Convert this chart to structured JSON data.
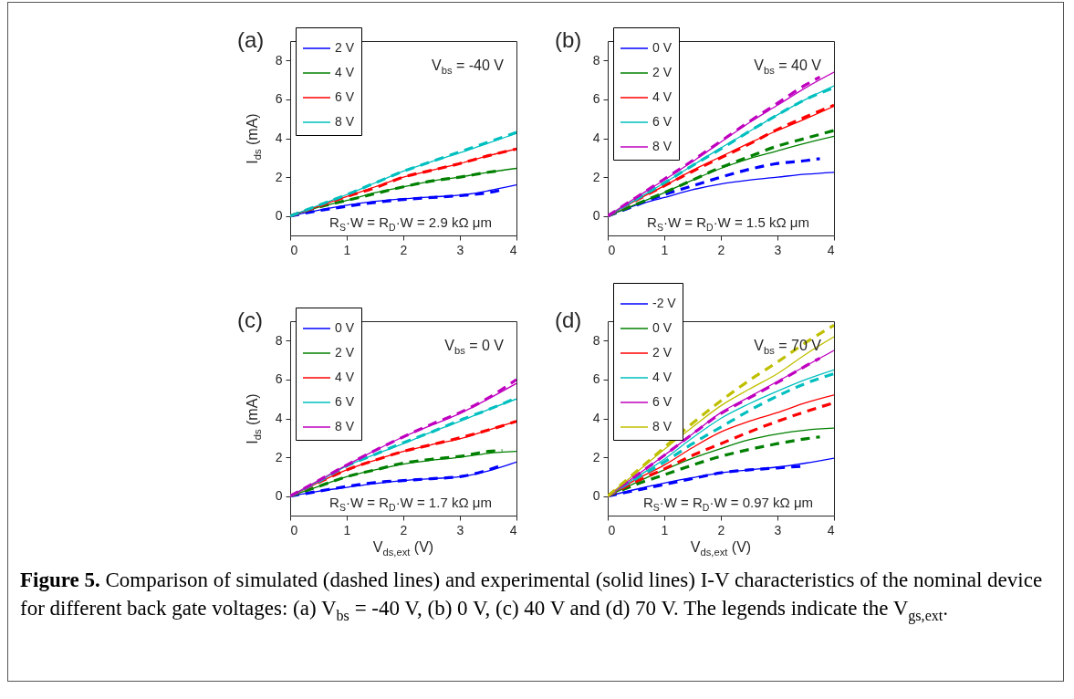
{
  "chart_data": [
    {
      "type": "line",
      "title": "(a)",
      "ylabel": "I$_{ds}$ (mA)",
      "xlim": [
        0,
        4
      ],
      "ylim": [
        -1,
        9
      ],
      "xticks": [
        0,
        1,
        2,
        3,
        4
      ],
      "yticks": [
        0,
        2,
        4,
        6,
        8
      ],
      "legend": "top left",
      "x": [
        0,
        0.5,
        1,
        1.5,
        2,
        2.5,
        3,
        3.5,
        4
      ],
      "annotations": [
        "V$_{bs}$ = -40 V",
        "R$_{S}$·W = R$_{D}$·W = 2.9 kΩ μm"
      ],
      "series": [
        {
          "name": "2 V",
          "color": "#0000ff",
          "values": [
            0,
            0.3,
            0.56,
            0.75,
            0.88,
            0.98,
            1.07,
            1.3,
            1.6
          ]
        },
        {
          "name": "4 V",
          "color": "#008000",
          "values": [
            0,
            0.45,
            0.8,
            1.2,
            1.5,
            1.8,
            2.0,
            2.25,
            2.45
          ]
        },
        {
          "name": "6 V",
          "color": "#ff0000",
          "values": [
            0,
            0.5,
            1.0,
            1.5,
            2.0,
            2.35,
            2.7,
            3.1,
            3.45
          ]
        },
        {
          "name": "8 V",
          "color": "#00bfbf",
          "values": [
            0,
            0.55,
            1.1,
            1.7,
            2.3,
            2.8,
            3.25,
            3.75,
            4.25
          ]
        },
        {
          "color": "#0000ff",
          "line_style": "dashed",
          "x": [
            0,
            0.5,
            1,
            1.5,
            2,
            2.5,
            3,
            3.5,
            3.75
          ],
          "values": [
            0,
            0.27,
            0.5,
            0.7,
            0.85,
            0.95,
            1.05,
            1.2,
            1.35
          ]
        },
        {
          "color": "#008000",
          "line_style": "dashed",
          "x": [
            0,
            0.5,
            1,
            1.5,
            2,
            2.5,
            3,
            3.5,
            3.75
          ],
          "values": [
            0,
            0.45,
            0.8,
            1.15,
            1.5,
            1.8,
            2.0,
            2.25,
            2.35
          ]
        },
        {
          "color": "#ff0000",
          "line_style": "dashed",
          "values": [
            0,
            0.5,
            1.0,
            1.45,
            2.0,
            2.35,
            2.7,
            3.1,
            3.45
          ]
        },
        {
          "color": "#00bfbf",
          "line_style": "dashed",
          "values": [
            0,
            0.55,
            1.1,
            1.7,
            2.3,
            2.8,
            3.3,
            3.8,
            4.3
          ]
        }
      ]
    },
    {
      "type": "line",
      "title": "(b)",
      "xlim": [
        0,
        4
      ],
      "ylim": [
        -1,
        9
      ],
      "xticks": [
        0,
        1,
        2,
        3,
        4
      ],
      "yticks": [
        0,
        2,
        4,
        6,
        8
      ],
      "legend": "top left",
      "x": [
        0,
        0.5,
        1,
        1.5,
        2,
        2.5,
        3,
        3.5,
        4
      ],
      "annotations": [
        "V$_{bs}$ = 40 V",
        "R$_{S}$·W = R$_{D}$·W = 1.5 kΩ μm"
      ],
      "series": [
        {
          "name": "0 V",
          "color": "#0000ff",
          "values": [
            0,
            0.55,
            0.95,
            1.35,
            1.65,
            1.85,
            2.0,
            2.15,
            2.25
          ]
        },
        {
          "name": "2 V",
          "color": "#008000",
          "values": [
            0,
            0.6,
            1.2,
            1.85,
            2.45,
            2.95,
            3.35,
            3.75,
            4.1
          ]
        },
        {
          "name": "4 V",
          "color": "#ff0000",
          "values": [
            0,
            0.8,
            1.55,
            2.35,
            3.05,
            3.75,
            4.4,
            5.0,
            5.65
          ]
        },
        {
          "name": "6 V",
          "color": "#00bfbf",
          "values": [
            0,
            0.85,
            1.7,
            2.6,
            3.5,
            4.35,
            5.2,
            6.0,
            6.7
          ]
        },
        {
          "name": "8 V",
          "color": "#bf00bf",
          "values": [
            0,
            0.95,
            1.85,
            2.8,
            3.8,
            4.8,
            5.7,
            6.6,
            7.4
          ]
        },
        {
          "color": "#0000ff",
          "line_style": "dashed",
          "x": [
            0,
            0.5,
            1,
            1.5,
            2,
            2.5,
            3,
            3.5,
            3.75
          ],
          "values": [
            0,
            0.55,
            1.1,
            1.55,
            2.0,
            2.4,
            2.7,
            2.85,
            2.95
          ]
        },
        {
          "color": "#008000",
          "line_style": "dashed",
          "values": [
            0,
            0.6,
            1.2,
            1.85,
            2.5,
            3.05,
            3.6,
            4.0,
            4.4
          ]
        },
        {
          "color": "#ff0000",
          "line_style": "dashed",
          "values": [
            0,
            0.8,
            1.55,
            2.3,
            3.0,
            3.7,
            4.45,
            5.1,
            5.7
          ]
        },
        {
          "color": "#00bfbf",
          "line_style": "dashed",
          "values": [
            0,
            0.85,
            1.7,
            2.6,
            3.45,
            4.35,
            5.2,
            6.0,
            6.6
          ]
        },
        {
          "color": "#bf00bf",
          "line_style": "dashed",
          "x": [
            0,
            0.5,
            1,
            1.5,
            2,
            2.5,
            3,
            3.5,
            3.75
          ],
          "values": [
            0,
            0.95,
            1.9,
            2.85,
            3.85,
            4.85,
            5.8,
            6.75,
            7.15
          ]
        }
      ]
    },
    {
      "type": "line",
      "title": "(c)",
      "ylabel": "I$_{ds}$ (mA)",
      "xlabel": "V$_{ds,ext}$ (V)",
      "xlim": [
        0,
        4
      ],
      "ylim": [
        -1,
        9
      ],
      "xticks": [
        0,
        1,
        2,
        3,
        4
      ],
      "yticks": [
        0,
        2,
        4,
        6,
        8
      ],
      "legend": "top left",
      "x": [
        0,
        0.5,
        1,
        1.5,
        2,
        2.5,
        3,
        3.5,
        4
      ],
      "annotations": [
        "V$_{bs}$ = 0 V",
        "R$_{S}$·W = R$_{D}$·W = 1.7 kΩ μm"
      ],
      "series": [
        {
          "name": "0 V",
          "color": "#0000ff",
          "values": [
            0,
            0.25,
            0.45,
            0.65,
            0.8,
            0.9,
            1.0,
            1.3,
            1.75
          ]
        },
        {
          "name": "2 V",
          "color": "#008000",
          "values": [
            0,
            0.5,
            1.0,
            1.35,
            1.65,
            1.85,
            2.0,
            2.2,
            2.3
          ]
        },
        {
          "name": "4 V",
          "color": "#ff0000",
          "values": [
            0,
            0.7,
            1.35,
            1.85,
            2.3,
            2.65,
            2.95,
            3.4,
            3.85
          ]
        },
        {
          "name": "6 V",
          "color": "#00bfbf",
          "values": [
            0,
            0.75,
            1.55,
            2.15,
            2.7,
            3.3,
            3.85,
            4.45,
            5.0
          ]
        },
        {
          "name": "8 V",
          "color": "#bf00bf",
          "values": [
            0,
            0.8,
            1.6,
            2.35,
            3.05,
            3.65,
            4.25,
            5.0,
            5.8
          ]
        },
        {
          "color": "#0000ff",
          "line_style": "dashed",
          "x": [
            0,
            0.5,
            1,
            1.5,
            2,
            2.5,
            3,
            3.5,
            3.75
          ],
          "values": [
            0,
            0.25,
            0.5,
            0.7,
            0.8,
            0.9,
            1.0,
            1.35,
            1.6
          ]
        },
        {
          "color": "#008000",
          "line_style": "dashed",
          "x": [
            0,
            0.5,
            1,
            1.5,
            2,
            2.5,
            3,
            3.5,
            3.75
          ],
          "values": [
            0,
            0.5,
            1.0,
            1.35,
            1.7,
            1.9,
            2.05,
            2.3,
            2.35
          ]
        },
        {
          "color": "#ff0000",
          "line_style": "dashed",
          "values": [
            0,
            0.7,
            1.35,
            1.85,
            2.3,
            2.65,
            3.0,
            3.4,
            3.85
          ]
        },
        {
          "color": "#00bfbf",
          "line_style": "dashed",
          "values": [
            0,
            0.75,
            1.55,
            2.15,
            2.75,
            3.3,
            3.9,
            4.45,
            5.05
          ]
        },
        {
          "color": "#bf00bf",
          "line_style": "dashed",
          "values": [
            0,
            0.8,
            1.6,
            2.35,
            3.05,
            3.7,
            4.3,
            5.05,
            6.0
          ]
        }
      ]
    },
    {
      "type": "line",
      "title": "(d)",
      "xlabel": "V$_{ds,ext}$ (V)",
      "xlim": [
        0,
        4
      ],
      "ylim": [
        -1,
        9
      ],
      "xticks": [
        0,
        1,
        2,
        3,
        4
      ],
      "yticks": [
        0,
        2,
        4,
        6,
        8
      ],
      "legend": "top left",
      "x": [
        0,
        0.5,
        1,
        1.5,
        2,
        2.5,
        3,
        3.5,
        4
      ],
      "annotations": [
        "V$_{bs}$ = 70 V",
        "R$_{S}$·W = R$_{D}$·W = 0.97 kΩ μm",
        "Figure 5.",
        " Comparison of simulated (dashed lines) and experimental (solid lines) I-V characteristics of the nominal device for different back gate voltages: (a) V$_{bs}$ = -40 V, (b) 0 V, (c) 40 V and (d) 70 V. The legends indicate the V$_{gs,ext}$."
      ],
      "series": [
        {
          "name": "-2 V",
          "color": "#0000ff",
          "values": [
            0,
            0.35,
            0.67,
            0.95,
            1.2,
            1.35,
            1.5,
            1.7,
            1.95
          ]
        },
        {
          "name": "0 V",
          "color": "#008000",
          "values": [
            0,
            0.7,
            1.35,
            1.95,
            2.45,
            2.9,
            3.2,
            3.4,
            3.5
          ]
        },
        {
          "name": "2 V",
          "color": "#ff0000",
          "values": [
            0,
            0.85,
            1.6,
            2.5,
            3.3,
            3.85,
            4.3,
            4.8,
            5.2
          ]
        },
        {
          "name": "4 V",
          "color": "#00bfbf",
          "values": [
            0,
            0.95,
            1.9,
            3.0,
            4.0,
            4.75,
            5.4,
            6.0,
            6.5
          ]
        },
        {
          "name": "6 V",
          "color": "#bf00bf",
          "values": [
            0,
            1.05,
            2.1,
            3.2,
            4.3,
            5.1,
            5.9,
            6.7,
            7.5
          ]
        },
        {
          "name": "8 V",
          "color": "#bfbf00",
          "values": [
            0,
            1.2,
            2.4,
            3.55,
            4.65,
            5.5,
            6.3,
            7.3,
            8.2
          ]
        },
        {
          "color": "#0000ff",
          "line_style": "dashed",
          "x": [
            0,
            0.5,
            1,
            1.5,
            2,
            2.5,
            3,
            3.5
          ],
          "values": [
            0,
            0.3,
            0.6,
            0.9,
            1.2,
            1.35,
            1.45,
            1.55
          ]
        },
        {
          "color": "#008000",
          "line_style": "dashed",
          "x": [
            0,
            0.5,
            1,
            1.5,
            2,
            2.5,
            3,
            3.5,
            3.75
          ],
          "values": [
            0,
            0.6,
            1.1,
            1.6,
            2.05,
            2.4,
            2.7,
            2.95,
            3.05
          ]
        },
        {
          "color": "#ff0000",
          "line_style": "dashed",
          "values": [
            0,
            0.75,
            1.4,
            2.1,
            2.7,
            3.3,
            3.85,
            4.35,
            4.8
          ]
        },
        {
          "color": "#00bfbf",
          "line_style": "dashed",
          "values": [
            0,
            0.9,
            1.75,
            2.7,
            3.55,
            4.4,
            5.15,
            5.8,
            6.3
          ]
        },
        {
          "color": "#bf00bf",
          "line_style": "dashed",
          "x": [
            0,
            0.5,
            1,
            1.5,
            2,
            2.5,
            3,
            3.5,
            3.75
          ],
          "values": [
            0,
            1.05,
            2.1,
            3.2,
            4.25,
            5.05,
            5.85,
            6.7,
            7.1
          ]
        },
        {
          "color": "#bfbf00",
          "line_style": "dashed",
          "values": [
            0,
            1.25,
            2.5,
            3.75,
            4.9,
            5.95,
            6.9,
            7.9,
            8.8
          ]
        }
      ]
    }
  ]
}
